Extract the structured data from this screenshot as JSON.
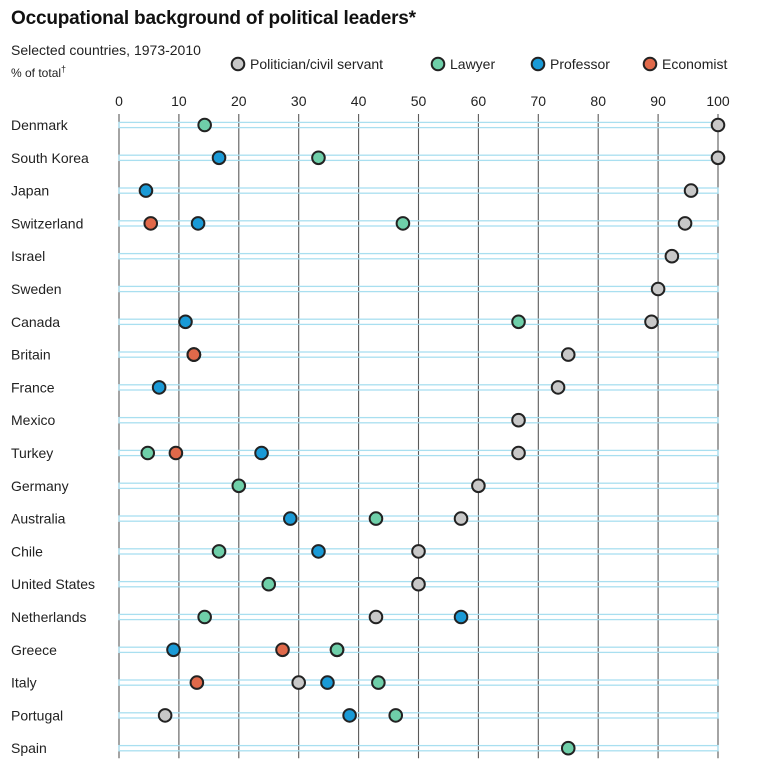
{
  "title": "Occupational background of political leaders*",
  "subtitle": "Selected countries, 1973-2010",
  "unit_label": "% of total",
  "unit_mark": "†",
  "colors": {
    "Politician/civil servant": "#c8c8c8",
    "Lawyer": "#6fcfa9",
    "Professor": "#1a9ad6",
    "Economist": "#e0694a",
    "row_line": "#a9dff0"
  },
  "chart_data": {
    "type": "scatter",
    "title": "Occupational background of political leaders*",
    "subtitle": "Selected countries, 1973-2010",
    "xlabel": "% of total†",
    "xlim": [
      0,
      100
    ],
    "xticks": [
      0,
      10,
      20,
      30,
      40,
      50,
      60,
      70,
      80,
      90,
      100
    ],
    "legend_position": "top",
    "series_names": [
      "Politician/civil servant",
      "Lawyer",
      "Professor",
      "Economist"
    ],
    "categories": [
      "Denmark",
      "South Korea",
      "Japan",
      "Switzerland",
      "Israel",
      "Sweden",
      "Canada",
      "Britain",
      "France",
      "Mexico",
      "Turkey",
      "Germany",
      "Australia",
      "Chile",
      "United States",
      "Netherlands",
      "Greece",
      "Italy",
      "Portugal",
      "Spain"
    ],
    "series": [
      {
        "name": "Politician/civil servant",
        "values": [
          100,
          100,
          95.5,
          94.5,
          92.3,
          90,
          88.9,
          75,
          73.3,
          66.7,
          66.7,
          60,
          57.1,
          50,
          50,
          42.9,
          36.4,
          30,
          7.7,
          null
        ]
      },
      {
        "name": "Lawyer",
        "values": [
          14.3,
          33.3,
          null,
          47.4,
          null,
          null,
          66.7,
          12.5,
          null,
          null,
          4.8,
          20,
          42.9,
          16.7,
          25,
          14.3,
          36.4,
          43.3,
          46.2,
          75
        ]
      },
      {
        "name": "Professor",
        "values": [
          null,
          16.7,
          4.5,
          13.2,
          null,
          null,
          11.1,
          12.5,
          6.7,
          null,
          23.8,
          null,
          28.6,
          33.3,
          null,
          57.1,
          9.1,
          34.8,
          38.5,
          null
        ]
      },
      {
        "name": "Economist",
        "values": [
          null,
          null,
          null,
          5.3,
          null,
          null,
          null,
          12.5,
          null,
          null,
          9.5,
          null,
          null,
          null,
          null,
          null,
          27.3,
          13,
          null,
          null
        ]
      }
    ]
  }
}
